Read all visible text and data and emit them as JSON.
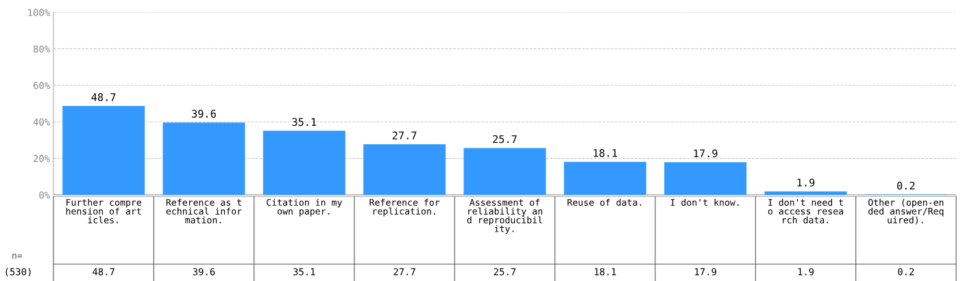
{
  "chart_data": {
    "type": "bar",
    "categories": [
      "Further comprehension of articles.",
      "Reference as technical information.",
      "Citation in my own paper.",
      "Reference for replication.",
      "Assessment of reliability and reproducibility.",
      "Reuse of data.",
      "I don't know.",
      "I don't need to access research data.",
      "Other (open-ended answer/Required)."
    ],
    "values": [
      48.7,
      39.6,
      35.1,
      27.7,
      25.7,
      18.1,
      17.9,
      1.9,
      0.2
    ],
    "value_labels": [
      "48.7",
      "39.6",
      "35.1",
      "27.7",
      "25.7",
      "18.1",
      "17.9",
      "1.9",
      "0.2"
    ],
    "color": "#3399ff",
    "ylim": [
      0,
      100
    ],
    "yticks": [
      {
        "value": 0,
        "label": "0%"
      },
      {
        "value": 20,
        "label": "20%"
      },
      {
        "value": 40,
        "label": "40%"
      },
      {
        "value": 60,
        "label": "60%"
      },
      {
        "value": 80,
        "label": "80%"
      },
      {
        "value": 100,
        "label": "100%"
      }
    ],
    "grid": "y",
    "legend": false,
    "annotations": [
      "n=",
      "(530)",
      "48.7",
      "39.6",
      "35.1",
      "27.7",
      "25.7",
      "18.1",
      "17.9",
      "1.9",
      "0.2"
    ]
  }
}
